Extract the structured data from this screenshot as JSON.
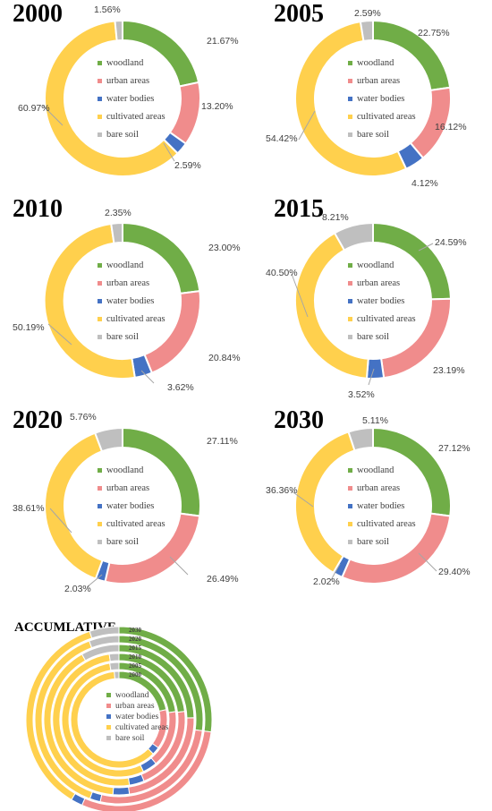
{
  "colors": {
    "woodland": "#70AD47",
    "urban areas": "#F08C8C",
    "water bodies": "#4472C4",
    "cultivated areas": "#FFD04D",
    "bare soil": "#BFBFBF"
  },
  "chart_data": [
    {
      "type": "pie",
      "variant": "donut",
      "title": "2000",
      "categories": [
        "woodland",
        "urban areas",
        "water bodies",
        "cultivated areas",
        "bare soil"
      ],
      "values": [
        21.67,
        13.2,
        2.59,
        60.97,
        1.56
      ],
      "labels": [
        "21.67%",
        "13.20%",
        "2.59%",
        "60.97%",
        "1.56%"
      ],
      "legend": "center"
    },
    {
      "type": "pie",
      "variant": "donut",
      "title": "2005",
      "categories": [
        "woodland",
        "urban areas",
        "water bodies",
        "cultivated areas",
        "bare soil"
      ],
      "values": [
        22.75,
        16.12,
        4.12,
        54.42,
        2.59
      ],
      "labels": [
        "22.75%",
        "16.12%",
        "4.12%",
        "54.42%",
        "2.59%"
      ],
      "legend": "center"
    },
    {
      "type": "pie",
      "variant": "donut",
      "title": "2010",
      "categories": [
        "woodland",
        "urban areas",
        "water bodies",
        "cultivated areas",
        "bare soil"
      ],
      "values": [
        23.0,
        20.84,
        3.62,
        50.19,
        2.35
      ],
      "labels": [
        "23.00%",
        "20.84%",
        "3.62%",
        "50.19%",
        "2.35%"
      ],
      "legend": "center"
    },
    {
      "type": "pie",
      "variant": "donut",
      "title": "2015",
      "categories": [
        "woodland",
        "urban areas",
        "water bodies",
        "cultivated areas",
        "bare soil"
      ],
      "values": [
        24.59,
        23.19,
        3.52,
        40.5,
        8.21
      ],
      "labels": [
        "24.59%",
        "23.19%",
        "3.52%",
        "40.50%",
        "8.21%"
      ],
      "legend": "center"
    },
    {
      "type": "pie",
      "variant": "donut",
      "title": "2020",
      "categories": [
        "woodland",
        "urban areas",
        "water bodies",
        "cultivated areas",
        "bare soil"
      ],
      "values": [
        27.11,
        26.49,
        2.03,
        38.61,
        5.76
      ],
      "labels": [
        "27.11%",
        "26.49%",
        "2.03%",
        "38.61%",
        "5.76%"
      ],
      "legend": "center"
    },
    {
      "type": "pie",
      "variant": "donut",
      "title": "2030",
      "categories": [
        "woodland",
        "urban areas",
        "water bodies",
        "cultivated areas",
        "bare soil"
      ],
      "values": [
        27.12,
        29.4,
        2.02,
        36.36,
        5.11
      ],
      "labels": [
        "27.12%",
        "29.40%",
        "2.02%",
        "36.36%",
        "5.11%"
      ],
      "legend": "center"
    },
    {
      "type": "pie",
      "variant": "nested-donut",
      "title": "ACCUMLATIVE",
      "categories": [
        "woodland",
        "urban areas",
        "water bodies",
        "cultivated areas",
        "bare soil"
      ],
      "ring_labels": [
        "2030",
        "2020",
        "2015",
        "2010",
        "2005",
        "2000"
      ],
      "legend": "center"
    }
  ]
}
